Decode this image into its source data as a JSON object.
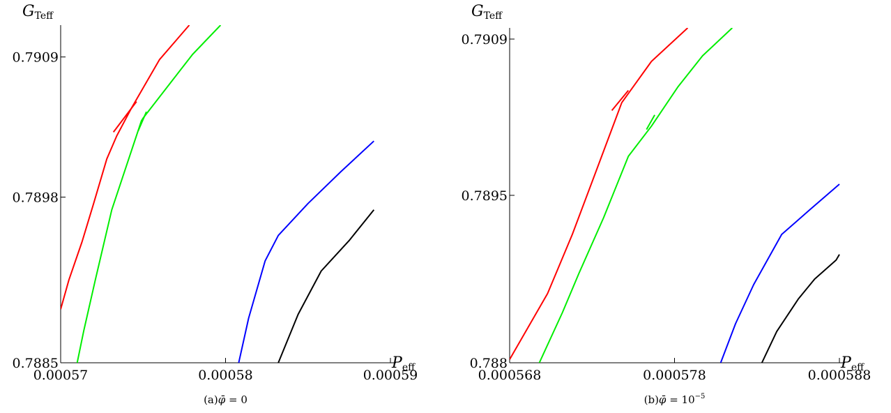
{
  "chart_data": [
    {
      "type": "line",
      "caption_prefix": "(a)",
      "caption_symbol": "φ̄",
      "caption_rest": " = 0",
      "ylabel_main": "G",
      "ylabel_sub": "Teff",
      "xlabel_main": "P",
      "xlabel_sub": "eff",
      "xlim": [
        0.00057,
        0.00059
      ],
      "ylim": [
        0.7885,
        0.79115
      ],
      "xticks": [
        "0.00057",
        "0.00058",
        "0.00059"
      ],
      "yticks": [
        "0.7885",
        "0.7898",
        "0.7909"
      ],
      "xtick_values": [
        0.00057,
        0.00058,
        0.00059
      ],
      "ytick_values": [
        0.7885,
        0.7898,
        0.7909
      ],
      "series": [
        {
          "color": "#ff0000",
          "points": [
            [
              0.00057,
              0.78892
            ],
            [
              0.0005705,
              0.78915
            ],
            [
              0.0005713,
              0.78945
            ],
            [
              0.000572,
              0.78975
            ],
            [
              0.0005728,
              0.7901
            ],
            [
              0.0005734,
              0.79028
            ],
            [
              0.0005743,
              0.7905
            ],
            [
              0.000576,
              0.79088
            ],
            [
              0.0005778,
              0.79115
            ]
          ]
        },
        {
          "color": "#ff0000",
          "points": [
            [
              0.0005732,
              0.79031
            ],
            [
              0.0005746,
              0.79055
            ]
          ]
        },
        {
          "color": "#00ee00",
          "points": [
            [
              0.000571,
              0.7885
            ],
            [
              0.0005714,
              0.78875
            ],
            [
              0.0005721,
              0.78915
            ],
            [
              0.0005731,
              0.7897
            ],
            [
              0.0005749,
              0.7904
            ],
            [
              0.000575,
              0.79042
            ],
            [
              0.0005768,
              0.79072
            ],
            [
              0.000578,
              0.79092
            ],
            [
              0.0005797,
              0.79115
            ]
          ]
        },
        {
          "color": "#00ee00",
          "points": [
            [
              0.0005747,
              0.79032
            ],
            [
              0.0005752,
              0.79047
            ]
          ]
        },
        {
          "color": "#0000ff",
          "points": [
            [
              0.0005808,
              0.7885
            ],
            [
              0.0005814,
              0.78885
            ],
            [
              0.0005824,
              0.7893
            ],
            [
              0.0005832,
              0.7895
            ],
            [
              0.000585,
              0.78975
            ],
            [
              0.000587,
              0.79
            ],
            [
              0.000589,
              0.79024
            ]
          ]
        },
        {
          "color": "#000000",
          "points": [
            [
              0.0005832,
              0.7885
            ],
            [
              0.0005844,
              0.78888
            ],
            [
              0.0005858,
              0.78922
            ],
            [
              0.0005875,
              0.78946
            ],
            [
              0.000589,
              0.7897
            ]
          ]
        }
      ]
    },
    {
      "type": "line",
      "caption_prefix": "(b)",
      "caption_symbol": "φ̄",
      "caption_rest": " = 10",
      "caption_exp": "−5",
      "ylabel_main": "G",
      "ylabel_sub": "Teff",
      "xlabel_main": "P",
      "xlabel_sub": "eff",
      "xlim": [
        0.000568,
        0.000588
      ],
      "ylim": [
        0.788,
        0.791
      ],
      "xticks": [
        "0.000568",
        "0.000578",
        "0.000588"
      ],
      "yticks": [
        "0.788",
        "0.7895",
        "0.7909"
      ],
      "xtick_values": [
        0.000568,
        0.000578,
        0.000588
      ],
      "ytick_values": [
        0.788,
        0.7895,
        0.7909
      ],
      "series": [
        {
          "color": "#ff0000",
          "points": [
            [
              0.000568,
              0.78803
            ],
            [
              0.0005703,
              0.78862
            ],
            [
              0.0005718,
              0.78915
            ],
            [
              0.0005732,
              0.7897
            ],
            [
              0.0005748,
              0.79033
            ],
            [
              0.0005766,
              0.7907
            ],
            [
              0.0005788,
              0.791
            ]
          ]
        },
        {
          "color": "#ff0000",
          "points": [
            [
              0.0005742,
              0.79026
            ],
            [
              0.0005752,
              0.79044
            ]
          ]
        },
        {
          "color": "#00ee00",
          "points": [
            [
              0.0005698,
              0.788
            ],
            [
              0.0005712,
              0.78845
            ],
            [
              0.0005722,
              0.7888
            ],
            [
              0.0005737,
              0.7893
            ],
            [
              0.0005752,
              0.78985
            ],
            [
              0.0005766,
              0.79012
            ],
            [
              0.0005782,
              0.79047
            ],
            [
              0.0005797,
              0.79075
            ],
            [
              0.0005815,
              0.791
            ]
          ]
        },
        {
          "color": "#00ee00",
          "points": [
            [
              0.0005763,
              0.79009
            ],
            [
              0.0005768,
              0.79022
            ]
          ]
        },
        {
          "color": "#0000ff",
          "points": [
            [
              0.0005808,
              0.788
            ],
            [
              0.0005817,
              0.78835
            ],
            [
              0.0005828,
              0.7887
            ],
            [
              0.0005845,
              0.78915
            ],
            [
              0.0005862,
              0.78937
            ],
            [
              0.000588,
              0.7896
            ]
          ]
        },
        {
          "color": "#000000",
          "points": [
            [
              0.0005833,
              0.788
            ],
            [
              0.0005842,
              0.78828
            ],
            [
              0.0005855,
              0.78857
            ],
            [
              0.0005865,
              0.78875
            ],
            [
              0.0005878,
              0.78892
            ],
            [
              0.000588,
              0.78897
            ]
          ]
        }
      ]
    }
  ]
}
